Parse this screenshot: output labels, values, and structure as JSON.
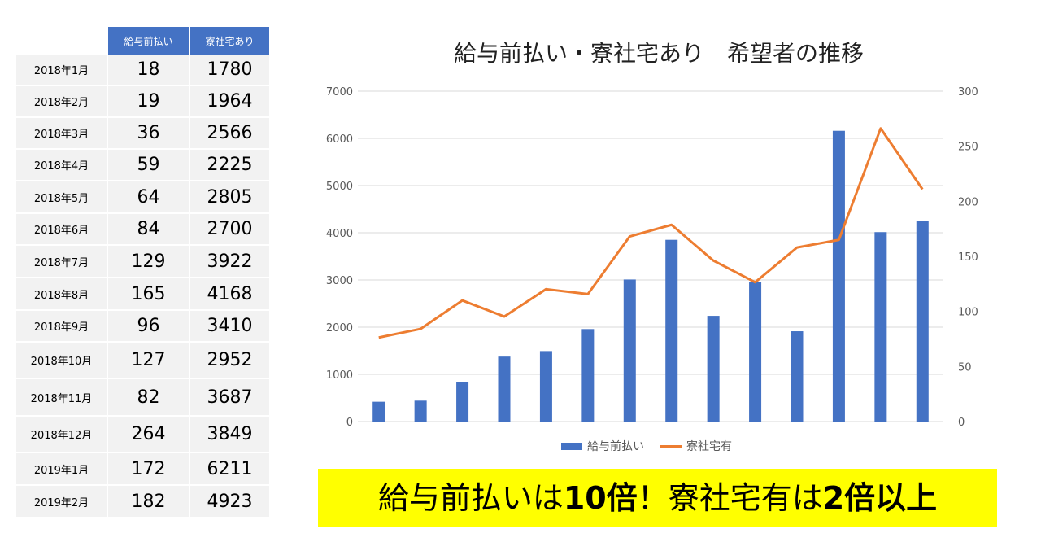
{
  "table": {
    "headers": [
      "",
      "給与前払い",
      "寮社宅あり"
    ],
    "rows": [
      {
        "month": "2018年1月",
        "prepay": "18",
        "dorm": "1780"
      },
      {
        "month": "2018年2月",
        "prepay": "19",
        "dorm": "1964"
      },
      {
        "month": "2018年3月",
        "prepay": "36",
        "dorm": "2566"
      },
      {
        "month": "2018年4月",
        "prepay": "59",
        "dorm": "2225"
      },
      {
        "month": "2018年5月",
        "prepay": "64",
        "dorm": "2805"
      },
      {
        "month": "2018年6月",
        "prepay": "84",
        "dorm": "2700"
      },
      {
        "month": "2018年7月",
        "prepay": "129",
        "dorm": "3922"
      },
      {
        "month": "2018年8月",
        "prepay": "165",
        "dorm": "4168"
      },
      {
        "month": "2018年9月",
        "prepay": "96",
        "dorm": "3410"
      },
      {
        "month": "2018年10月",
        "prepay": "127",
        "dorm": "2952"
      },
      {
        "month": "2018年11月",
        "prepay": "82",
        "dorm": "3687"
      },
      {
        "month": "2018年12月",
        "prepay": "264",
        "dorm": "3849"
      },
      {
        "month": "2019年1月",
        "prepay": "172",
        "dorm": "6211"
      },
      {
        "month": "2019年2月",
        "prepay": "182",
        "dorm": "4923"
      }
    ]
  },
  "banner": {
    "part1": "給与前払いは",
    "bold1": "10倍",
    "part2": "！寮社宅有は",
    "bold2": "2倍以上"
  },
  "colors": {
    "bar": "#4472c4",
    "line": "#ed7d31",
    "header": "#4472c4",
    "banner": "#ffff00"
  },
  "chart_data": {
    "type": "bar",
    "title": "給与前払い・寮社宅あり　希望者の推移",
    "categories": [
      "2018年1月",
      "2018年2月",
      "2018年3月",
      "2018年4月",
      "2018年5月",
      "2018年6月",
      "2018年7月",
      "2018年8月",
      "2018年9月",
      "2018年10月",
      "2018年11月",
      "2018年12月",
      "2019年1月",
      "2019年2月"
    ],
    "series": [
      {
        "name": "給与前払い",
        "type": "bar",
        "axis": "right",
        "values": [
          18,
          19,
          36,
          59,
          64,
          84,
          129,
          165,
          96,
          127,
          82,
          264,
          172,
          182
        ]
      },
      {
        "name": "寮社宅有",
        "type": "line",
        "axis": "left",
        "values": [
          1780,
          1964,
          2566,
          2225,
          2805,
          2700,
          3922,
          4168,
          3410,
          2952,
          3687,
          3849,
          6211,
          4923
        ]
      }
    ],
    "y_left": {
      "ylim": [
        0,
        7000
      ],
      "ticks": [
        "0",
        "1000",
        "2000",
        "3000",
        "4000",
        "5000",
        "6000",
        "7000"
      ]
    },
    "y_right": {
      "ylim": [
        0,
        300
      ],
      "ticks": [
        "0",
        "50",
        "100",
        "150",
        "200",
        "250",
        "300"
      ]
    },
    "xlabel": "",
    "ylabel": "",
    "grid": true,
    "legend": {
      "position": "bottom",
      "entries": [
        "給与前払い",
        "寮社宅有"
      ]
    }
  }
}
